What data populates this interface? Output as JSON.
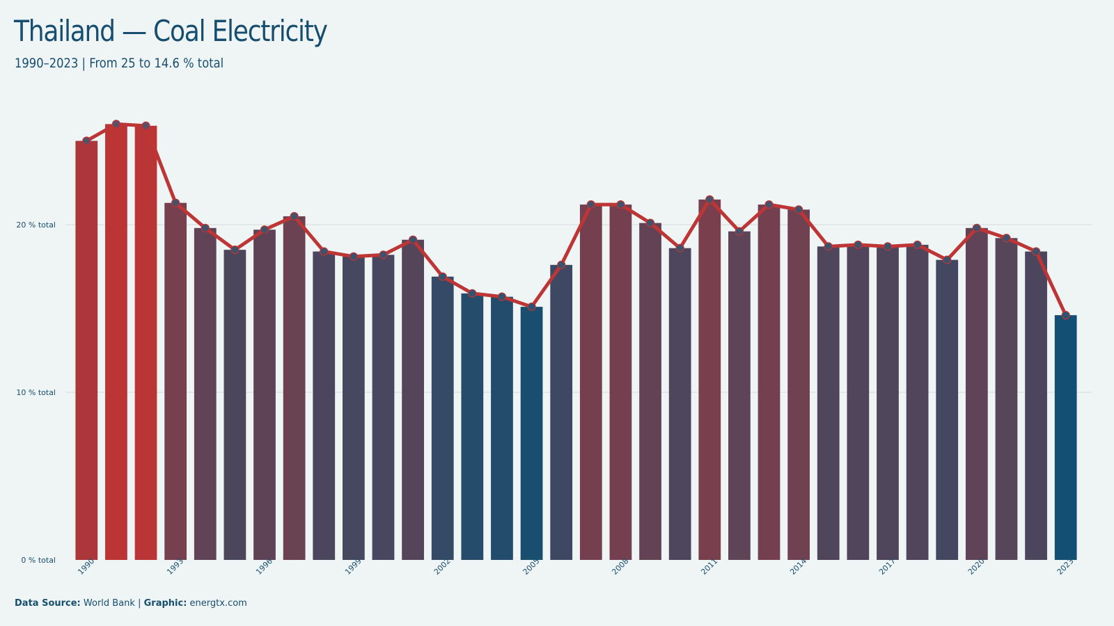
{
  "title": "Thailand — Coal Electricity",
  "subtitle": "1990–2023 | From 25 to 14.6 % total",
  "footer": {
    "source_label": "Data Source:",
    "source_value": "World Bank",
    "separator": "|",
    "graphic_label": "Graphic:",
    "graphic_value": "energtx.com"
  },
  "colors": {
    "background": "#eff5f5",
    "text": "#174e70",
    "high": "#bb3535",
    "low": "#134f72",
    "line": "#bd3535",
    "marker": "#4e5570",
    "grid": "#d4dcdc"
  },
  "chart_data": {
    "type": "bar",
    "title": "Thailand — Coal Electricity",
    "subtitle": "1990–2023 | From 25 to 14.6 % total",
    "categories": [
      "1990",
      "1991",
      "1992",
      "1993",
      "1994",
      "1995",
      "1996",
      "1997",
      "1998",
      "1999",
      "2000",
      "2001",
      "2002",
      "2003",
      "2004",
      "2005",
      "2006",
      "2007",
      "2008",
      "2009",
      "2010",
      "2011",
      "2012",
      "2013",
      "2014",
      "2015",
      "2016",
      "2017",
      "2018",
      "2019",
      "2020",
      "2021",
      "2022",
      "2023"
    ],
    "x_tick_labels": [
      "1990",
      "1993",
      "1996",
      "1999",
      "2002",
      "2005",
      "2008",
      "2011",
      "2014",
      "2017",
      "2020",
      "2023"
    ],
    "series": [
      {
        "values": [
          25.0,
          26.0,
          25.9,
          21.3,
          19.8,
          18.5,
          19.7,
          20.5,
          18.4,
          18.1,
          18.2,
          19.1,
          16.9,
          15.9,
          15.7,
          15.1,
          17.6,
          21.2,
          21.2,
          20.1,
          18.6,
          21.5,
          19.6,
          21.2,
          20.9,
          18.7,
          18.8,
          18.7,
          18.8,
          17.9,
          19.8,
          19.2,
          18.4,
          14.6
        ],
        "render": [
          "bar",
          "line",
          "points"
        ]
      }
    ],
    "y_ticks": [
      0,
      10,
      20
    ],
    "y_tick_labels": [
      "0 % total",
      "10 % total",
      "20 % total"
    ],
    "ylim": [
      0,
      28
    ],
    "grid": "horizontal",
    "legend": "none"
  }
}
